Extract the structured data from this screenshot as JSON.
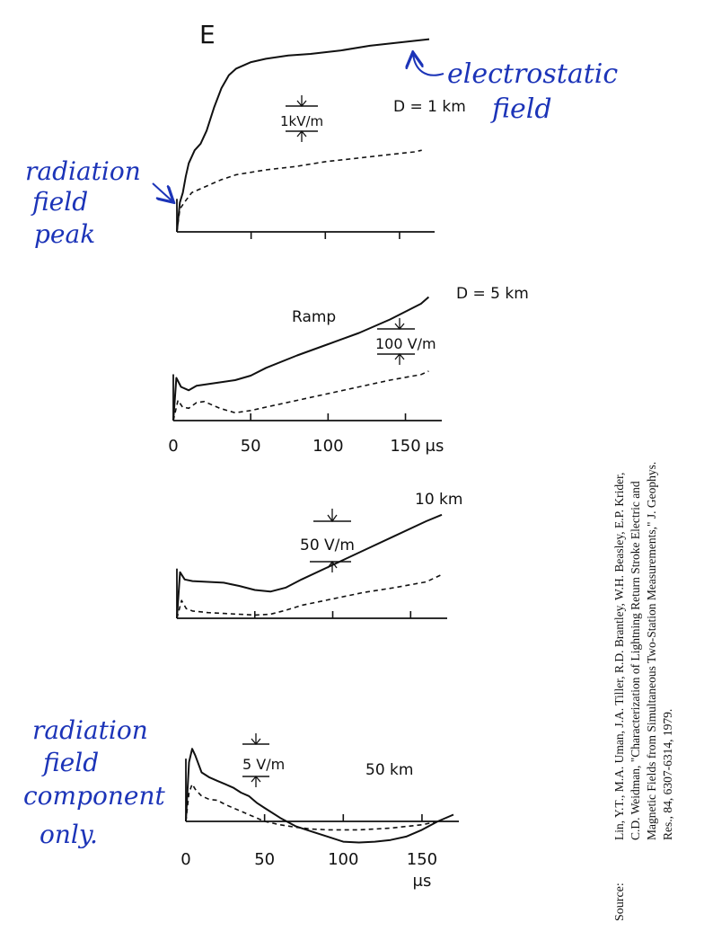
{
  "figure": {
    "letter": "E",
    "handwritten_notes": {
      "electrostatic": [
        "electrostatic",
        "field"
      ],
      "radiation_peak": [
        "radiation",
        "field",
        "peak"
      ],
      "radiation_component": [
        "radiation",
        "field",
        "component",
        "only."
      ]
    },
    "source_label": "Source:",
    "citation": [
      "Lin, Y.T., M.A. Uman, J.A. Tiller, R.D. Brantley, W.H. Beasley, E.P. Krider,",
      "C.D. Weidman, \"Characterization of Lightning Return Stroke Electric and",
      "Magnetic Fields from Simultaneous Two-Station Measurements,\" J. Geophys.",
      "Res., 84, 6307-6314, 1979."
    ]
  },
  "chart_data": [
    {
      "type": "line",
      "title": "D = 1 km",
      "scale_bar": "1kV/m",
      "xlim": [
        0,
        170
      ],
      "ylim": [
        0,
        6
      ],
      "x_ticks": [
        0,
        50,
        100,
        150
      ],
      "series": [
        {
          "style": "solid",
          "x": [
            0,
            2,
            4,
            6,
            8,
            12,
            16,
            20,
            25,
            30,
            35,
            40,
            50,
            60,
            75,
            90,
            110,
            130,
            150,
            170
          ],
          "y": [
            0,
            0.9,
            1.2,
            1.7,
            2.1,
            2.5,
            2.7,
            3.1,
            3.8,
            4.4,
            4.8,
            5.0,
            5.2,
            5.3,
            5.4,
            5.45,
            5.55,
            5.7,
            5.8,
            5.9
          ]
        },
        {
          "style": "dashed",
          "x": [
            0,
            2,
            5,
            10,
            20,
            30,
            40,
            60,
            80,
            100,
            120,
            140,
            160,
            165
          ],
          "y": [
            0,
            0.7,
            0.9,
            1.2,
            1.4,
            1.6,
            1.75,
            1.9,
            2.0,
            2.15,
            2.25,
            2.35,
            2.45,
            2.5
          ]
        }
      ]
    },
    {
      "type": "line",
      "title": "D = 5 km",
      "annotation": "Ramp",
      "scale_bar": "100 V/m",
      "xlabel": "μs",
      "xlim": [
        0,
        170
      ],
      "ylim": [
        0,
        6
      ],
      "x_ticks": [
        0,
        50,
        100,
        150
      ],
      "x_tick_labels": [
        "0",
        "50",
        "100",
        "150"
      ],
      "series": [
        {
          "style": "solid",
          "x": [
            0,
            2,
            5,
            10,
            15,
            20,
            30,
            40,
            50,
            60,
            80,
            100,
            120,
            140,
            160,
            165
          ],
          "y": [
            0,
            1.9,
            1.5,
            1.35,
            1.55,
            1.6,
            1.7,
            1.8,
            2.0,
            2.35,
            2.9,
            3.4,
            3.9,
            4.5,
            5.2,
            5.5
          ]
        },
        {
          "style": "dashed",
          "x": [
            0,
            3,
            6,
            10,
            15,
            20,
            30,
            40,
            50,
            60,
            80,
            100,
            120,
            140,
            160,
            165
          ],
          "y": [
            0,
            0.9,
            0.6,
            0.55,
            0.8,
            0.85,
            0.55,
            0.35,
            0.45,
            0.6,
            0.9,
            1.2,
            1.5,
            1.8,
            2.05,
            2.2
          ]
        }
      ]
    },
    {
      "type": "line",
      "title": "10 km",
      "scale_bar": "50 V/m",
      "xlim": [
        0,
        170
      ],
      "ylim": [
        0,
        6
      ],
      "x_ticks": [
        0,
        50,
        100,
        150
      ],
      "series": [
        {
          "style": "solid",
          "x": [
            0,
            2,
            5,
            10,
            20,
            30,
            40,
            50,
            60,
            70,
            80,
            100,
            120,
            140,
            160,
            170
          ],
          "y": [
            0,
            2.85,
            2.4,
            2.3,
            2.25,
            2.2,
            2.0,
            1.75,
            1.65,
            1.9,
            2.4,
            3.3,
            4.2,
            5.1,
            6.0,
            6.4
          ]
        },
        {
          "style": "dashed",
          "x": [
            0,
            3,
            6,
            10,
            20,
            30,
            40,
            50,
            60,
            70,
            80,
            100,
            120,
            140,
            160,
            170
          ],
          "y": [
            0,
            1.1,
            0.6,
            0.45,
            0.35,
            0.3,
            0.25,
            0.2,
            0.25,
            0.5,
            0.8,
            1.2,
            1.6,
            1.9,
            2.25,
            2.7
          ]
        }
      ]
    },
    {
      "type": "line",
      "title": "50 km",
      "scale_bar": "5 V/m",
      "xlabel": "μs",
      "xlim": [
        0,
        170
      ],
      "ylim": [
        -2,
        5
      ],
      "x_ticks": [
        0,
        50,
        100,
        150
      ],
      "x_tick_labels": [
        "0",
        "50",
        "100",
        "150"
      ],
      "series": [
        {
          "style": "solid",
          "x": [
            0,
            2,
            4,
            6,
            10,
            15,
            20,
            25,
            30,
            35,
            40,
            45,
            50,
            60,
            70,
            80,
            90,
            100,
            110,
            120,
            130,
            140,
            150,
            160,
            170
          ],
          "y": [
            0,
            3.5,
            4.3,
            3.9,
            2.9,
            2.6,
            2.4,
            2.2,
            2.0,
            1.7,
            1.5,
            1.1,
            0.8,
            0.2,
            -0.3,
            -0.6,
            -0.9,
            -1.2,
            -1.25,
            -1.2,
            -1.1,
            -0.9,
            -0.5,
            0.0,
            0.4
          ]
        },
        {
          "style": "dashed",
          "x": [
            0,
            2,
            4,
            6,
            10,
            15,
            20,
            25,
            30,
            35,
            40,
            45,
            50,
            60,
            70,
            80,
            90,
            100,
            110,
            120,
            130,
            140,
            150,
            160
          ],
          "y": [
            0,
            1.7,
            2.2,
            1.9,
            1.5,
            1.3,
            1.25,
            1.0,
            0.8,
            0.6,
            0.4,
            0.2,
            0.0,
            -0.2,
            -0.35,
            -0.45,
            -0.5,
            -0.5,
            -0.5,
            -0.45,
            -0.4,
            -0.3,
            -0.2,
            0.0
          ]
        }
      ]
    }
  ]
}
